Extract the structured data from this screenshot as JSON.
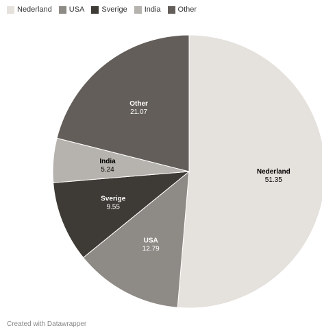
{
  "chart_data": {
    "type": "pie",
    "categories": [
      "Nederland",
      "USA",
      "Sverige",
      "India",
      "Other"
    ],
    "values": [
      51.35,
      12.79,
      9.55,
      5.24,
      21.07
    ],
    "value_labels": [
      "51.35",
      "12.79",
      "9.55",
      "5.24",
      "21.07"
    ],
    "colors": [
      "#e5e1dc",
      "#8e8a85",
      "#3e3a35",
      "#b6b3ae",
      "#635e59"
    ],
    "label_colors": [
      "#000000",
      "#ffffff",
      "#ffffff",
      "#000000",
      "#ffffff"
    ],
    "legend_position": "top-left",
    "start": "12 o'clock, clockwise"
  },
  "footer": {
    "credit": "Created with Datawrapper"
  }
}
